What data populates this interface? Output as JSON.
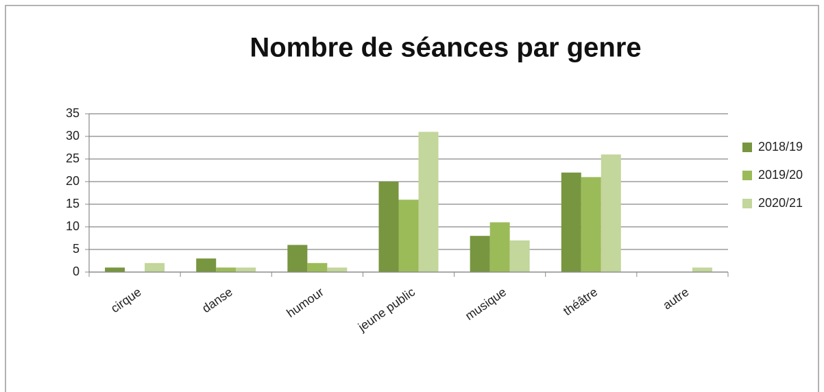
{
  "chart_data": {
    "type": "bar",
    "title": "Nombre de séances par genre",
    "categories": [
      "cirque",
      "danse",
      "humour",
      "jeune public",
      "musique",
      "théâtre",
      "autre"
    ],
    "series": [
      {
        "name": "2018/19",
        "color": "#77963f",
        "values": [
          1,
          3,
          6,
          20,
          8,
          22,
          0
        ]
      },
      {
        "name": "2019/20",
        "color": "#9bbb59",
        "values": [
          0,
          1,
          2,
          16,
          11,
          21,
          0
        ]
      },
      {
        "name": "2020/21",
        "color": "#c3d69b",
        "values": [
          2,
          1,
          1,
          31,
          7,
          26,
          1
        ]
      }
    ],
    "ylim": [
      0,
      35
    ],
    "yticks": [
      0,
      5,
      10,
      15,
      20,
      25,
      30,
      35
    ],
    "grid": true,
    "legend": "right"
  }
}
